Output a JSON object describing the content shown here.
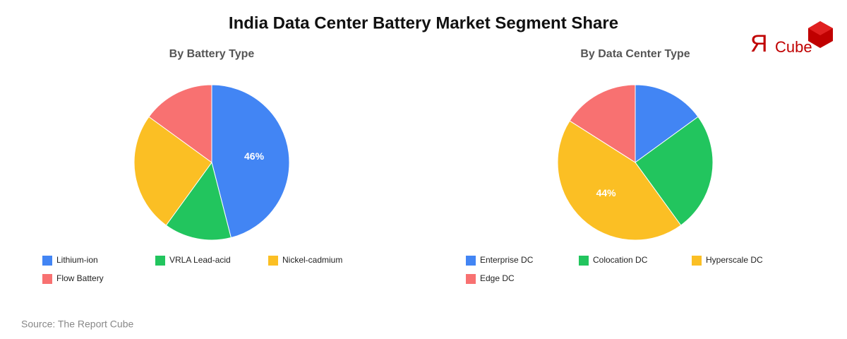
{
  "title": "India Data Center Battery Market Segment Share",
  "logo": {
    "mark": "Я",
    "text": "Cube"
  },
  "source": "Source: The Report Cube",
  "chart_data": [
    {
      "type": "pie",
      "title": "By Battery Type",
      "categories": [
        "Lithium-ion",
        "VRLA Lead-acid",
        "Nickel-cadmium",
        "Flow Battery"
      ],
      "values": [
        46,
        14,
        25,
        15
      ],
      "value_labels": [
        "46%",
        null,
        null,
        null
      ],
      "colors": [
        "#4285f4",
        "#22c55e",
        "#fbbf24",
        "#f87171"
      ]
    },
    {
      "type": "pie",
      "title": "By Data Center Type",
      "categories": [
        "Enterprise DC",
        "Colocation DC",
        "Hyperscale DC",
        "Edge DC"
      ],
      "values": [
        15,
        25,
        44,
        16
      ],
      "value_labels": [
        null,
        null,
        "44%",
        null
      ],
      "colors": [
        "#4285f4",
        "#22c55e",
        "#fbbf24",
        "#f87171"
      ]
    }
  ]
}
